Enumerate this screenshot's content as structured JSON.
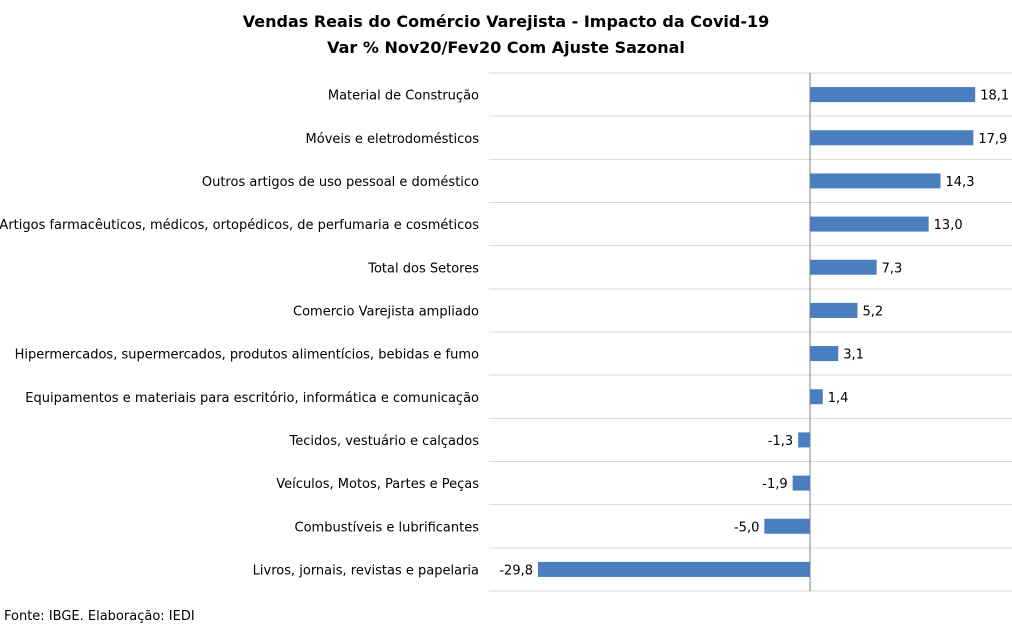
{
  "chart_data": {
    "type": "bar",
    "orientation": "horizontal",
    "title": "Vendas Reais do Comércio Varejista - Impacto da Covid-19",
    "subtitle": "Var % Nov20/Fev20 Com Ajuste Sazonal",
    "categories": [
      "Material de Construção",
      "Móveis e eletrodomésticos",
      "Outros artigos de uso pessoal e doméstico",
      "Artigos farmacêuticos, médicos, ortopédicos, de perfumaria e cosméticos",
      "Total dos Setores",
      "Comercio Varejista ampliado",
      "Hipermercados, supermercados, produtos alimentícios, bebidas e fumo",
      "Equipamentos e materiais para escritório, informática e comunicação",
      "Tecidos, vestuário e calçados",
      "Veículos, Motos, Partes e Peças",
      "Combustíveis e lubrificantes",
      "Livros, jornais, revistas e papelaria"
    ],
    "values": [
      18.1,
      17.9,
      14.3,
      13.0,
      7.3,
      5.2,
      3.1,
      1.4,
      -1.3,
      -1.9,
      -5.0,
      -29.8
    ],
    "value_labels": [
      "18,1",
      "17,9",
      "14,3",
      "13,0",
      "7,3",
      "5,2",
      "3,1",
      "1,4",
      "-1,3",
      "-1,9",
      "-5,0",
      "-29,8"
    ],
    "xlim": [
      -35,
      20
    ],
    "bar_color": "#4a7ebf",
    "grid": true,
    "legend": "none"
  },
  "source": "Fonte: IBGE. Elaboração: IEDI"
}
